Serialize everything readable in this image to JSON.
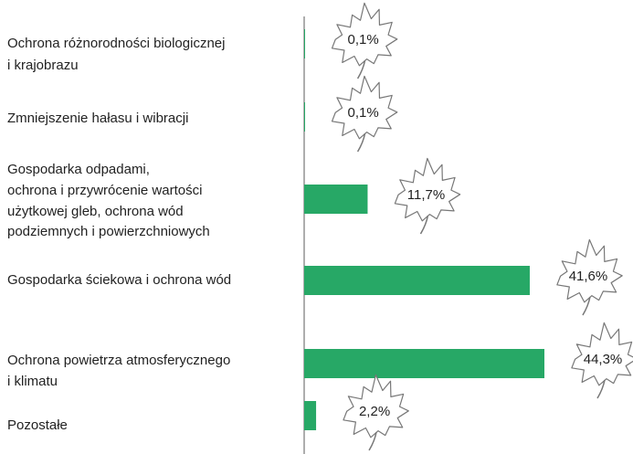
{
  "chart_data": {
    "type": "bar",
    "orientation": "horizontal",
    "categories": [
      [
        "Ochrona różnorodności biologicznej",
        "i krajobrazu"
      ],
      [
        "Zmniejszenie hałasu i wibracji"
      ],
      [
        "Gospodarka odpadami,",
        "ochrona i przywrócenie wartości",
        "użytkowej gleb, ochrona wód",
        "podziemnych i powierzchniowych"
      ],
      [
        "Gospodarka ściekowa i ochrona wód"
      ],
      [
        "Ochrona powietrza atmosferycznego",
        "i klimatu"
      ],
      [
        "Pozostałe"
      ]
    ],
    "values": [
      0.1,
      0.1,
      11.7,
      41.6,
      44.3,
      2.2
    ],
    "value_labels": [
      "0,1%",
      "0,1%",
      "11,7%",
      "41,6%",
      "44,3%",
      "2,2%"
    ],
    "color": "#27a866"
  }
}
